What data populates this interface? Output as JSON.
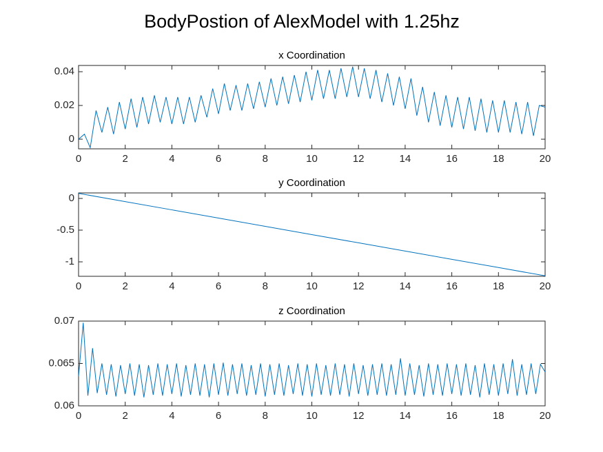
{
  "title": "BodyPostion of AlexModel with 1.25hz",
  "chart_data": [
    {
      "type": "line",
      "title": "x Coordination",
      "color": "#0072bd",
      "xlim": [
        0,
        20
      ],
      "xticks": [
        0,
        2,
        4,
        6,
        8,
        10,
        12,
        14,
        16,
        18,
        20
      ],
      "ylim": [
        -0.0057,
        0.0437
      ],
      "yticks": [
        0,
        0.02,
        0.04
      ],
      "x": [
        0,
        0.25,
        0.5,
        0.75,
        1,
        1.25,
        1.5,
        1.75,
        2,
        2.25,
        2.5,
        2.75,
        3,
        3.25,
        3.5,
        3.75,
        4,
        4.25,
        4.5,
        4.75,
        5,
        5.25,
        5.5,
        5.75,
        6,
        6.25,
        6.5,
        6.75,
        7,
        7.25,
        7.5,
        7.75,
        8,
        8.25,
        8.5,
        8.75,
        9,
        9.25,
        9.5,
        9.75,
        10,
        10.25,
        10.5,
        10.75,
        11,
        11.25,
        11.5,
        11.75,
        12,
        12.25,
        12.5,
        12.75,
        13,
        13.25,
        13.5,
        13.75,
        14,
        14.25,
        14.5,
        14.75,
        15,
        15.25,
        15.5,
        15.75,
        16,
        16.25,
        16.5,
        16.75,
        17,
        17.25,
        17.5,
        17.75,
        18,
        18.25,
        18.5,
        18.75,
        19,
        19.25,
        19.5,
        19.75,
        20
      ],
      "values": [
        0,
        0.003,
        -0.005,
        0.017,
        0.004,
        0.019,
        0.003,
        0.022,
        0.006,
        0.024,
        0.007,
        0.025,
        0.009,
        0.026,
        0.01,
        0.025,
        0.009,
        0.025,
        0.009,
        0.025,
        0.01,
        0.026,
        0.013,
        0.03,
        0.015,
        0.033,
        0.017,
        0.032,
        0.017,
        0.033,
        0.018,
        0.034,
        0.019,
        0.036,
        0.02,
        0.037,
        0.021,
        0.038,
        0.022,
        0.04,
        0.023,
        0.041,
        0.024,
        0.041,
        0.024,
        0.042,
        0.025,
        0.043,
        0.025,
        0.042,
        0.024,
        0.041,
        0.022,
        0.039,
        0.02,
        0.037,
        0.018,
        0.036,
        0.014,
        0.031,
        0.01,
        0.028,
        0.008,
        0.026,
        0.007,
        0.025,
        0.006,
        0.025,
        0.005,
        0.024,
        0.004,
        0.023,
        0.004,
        0.023,
        0.004,
        0.022,
        0.003,
        0.022,
        0.002,
        0.02,
        0.019
      ]
    },
    {
      "type": "line",
      "title": "y Coordination",
      "color": "#0072bd",
      "xlim": [
        0,
        20
      ],
      "xticks": [
        0,
        2,
        4,
        6,
        8,
        10,
        12,
        14,
        16,
        18,
        20
      ],
      "ylim": [
        -1.228,
        0.087
      ],
      "yticks": [
        -1,
        -0.5,
        0
      ],
      "x": [
        0,
        2,
        4,
        6,
        8,
        10,
        12,
        14,
        16,
        18,
        20
      ],
      "values": [
        0.08,
        -0.05,
        -0.18,
        -0.31,
        -0.44,
        -0.57,
        -0.7,
        -0.83,
        -0.96,
        -1.09,
        -1.22
      ]
    },
    {
      "type": "line",
      "title": "z Coordination",
      "color": "#0072bd",
      "xlim": [
        0,
        20
      ],
      "xticks": [
        0,
        2,
        4,
        6,
        8,
        10,
        12,
        14,
        16,
        18,
        20
      ],
      "ylim": [
        0.06,
        0.07
      ],
      "yticks": [
        0.06,
        0.065,
        0.07
      ],
      "x": [
        0,
        0.2,
        0.4,
        0.6,
        0.8,
        1,
        1.2,
        1.4,
        1.6,
        1.8,
        2,
        2.2,
        2.4,
        2.6,
        2.8,
        3,
        3.2,
        3.4,
        3.6,
        3.8,
        4,
        4.2,
        4.4,
        4.6,
        4.8,
        5,
        5.2,
        5.4,
        5.6,
        5.8,
        6,
        6.2,
        6.4,
        6.6,
        6.8,
        7,
        7.2,
        7.4,
        7.6,
        7.8,
        8,
        8.2,
        8.4,
        8.6,
        8.8,
        9,
        9.2,
        9.4,
        9.6,
        9.8,
        10,
        10.2,
        10.4,
        10.6,
        10.8,
        11,
        11.2,
        11.4,
        11.6,
        11.8,
        12,
        12.2,
        12.4,
        12.6,
        12.8,
        13,
        13.2,
        13.4,
        13.6,
        13.8,
        14,
        14.2,
        14.4,
        14.6,
        14.8,
        15,
        15.2,
        15.4,
        15.6,
        15.8,
        16,
        16.2,
        16.4,
        16.6,
        16.8,
        17,
        17.2,
        17.4,
        17.6,
        17.8,
        18,
        18.2,
        18.4,
        18.6,
        18.8,
        19,
        19.2,
        19.4,
        19.6,
        19.8,
        20
      ],
      "values": [
        0.0635,
        0.0698,
        0.0612,
        0.0668,
        0.0615,
        0.065,
        0.0613,
        0.0649,
        0.0611,
        0.0648,
        0.0614,
        0.065,
        0.0612,
        0.0649,
        0.061,
        0.0648,
        0.0613,
        0.065,
        0.0612,
        0.0649,
        0.0614,
        0.065,
        0.0611,
        0.0648,
        0.0613,
        0.065,
        0.0612,
        0.0649,
        0.061,
        0.065,
        0.0613,
        0.0651,
        0.0612,
        0.0649,
        0.0614,
        0.065,
        0.0612,
        0.0648,
        0.0613,
        0.065,
        0.0611,
        0.0649,
        0.0613,
        0.065,
        0.0612,
        0.0648,
        0.0614,
        0.065,
        0.0612,
        0.0649,
        0.0611,
        0.065,
        0.0613,
        0.0648,
        0.0612,
        0.065,
        0.0613,
        0.0649,
        0.0611,
        0.065,
        0.0614,
        0.0648,
        0.0612,
        0.0649,
        0.0613,
        0.065,
        0.0612,
        0.0649,
        0.0613,
        0.0656,
        0.0612,
        0.065,
        0.0613,
        0.0648,
        0.0611,
        0.065,
        0.0613,
        0.0649,
        0.0612,
        0.065,
        0.0614,
        0.0649,
        0.0612,
        0.065,
        0.0613,
        0.0648,
        0.061,
        0.065,
        0.0613,
        0.0649,
        0.0612,
        0.065,
        0.0614,
        0.0655,
        0.0612,
        0.0649,
        0.0613,
        0.065,
        0.0614,
        0.0649,
        0.064
      ]
    }
  ]
}
